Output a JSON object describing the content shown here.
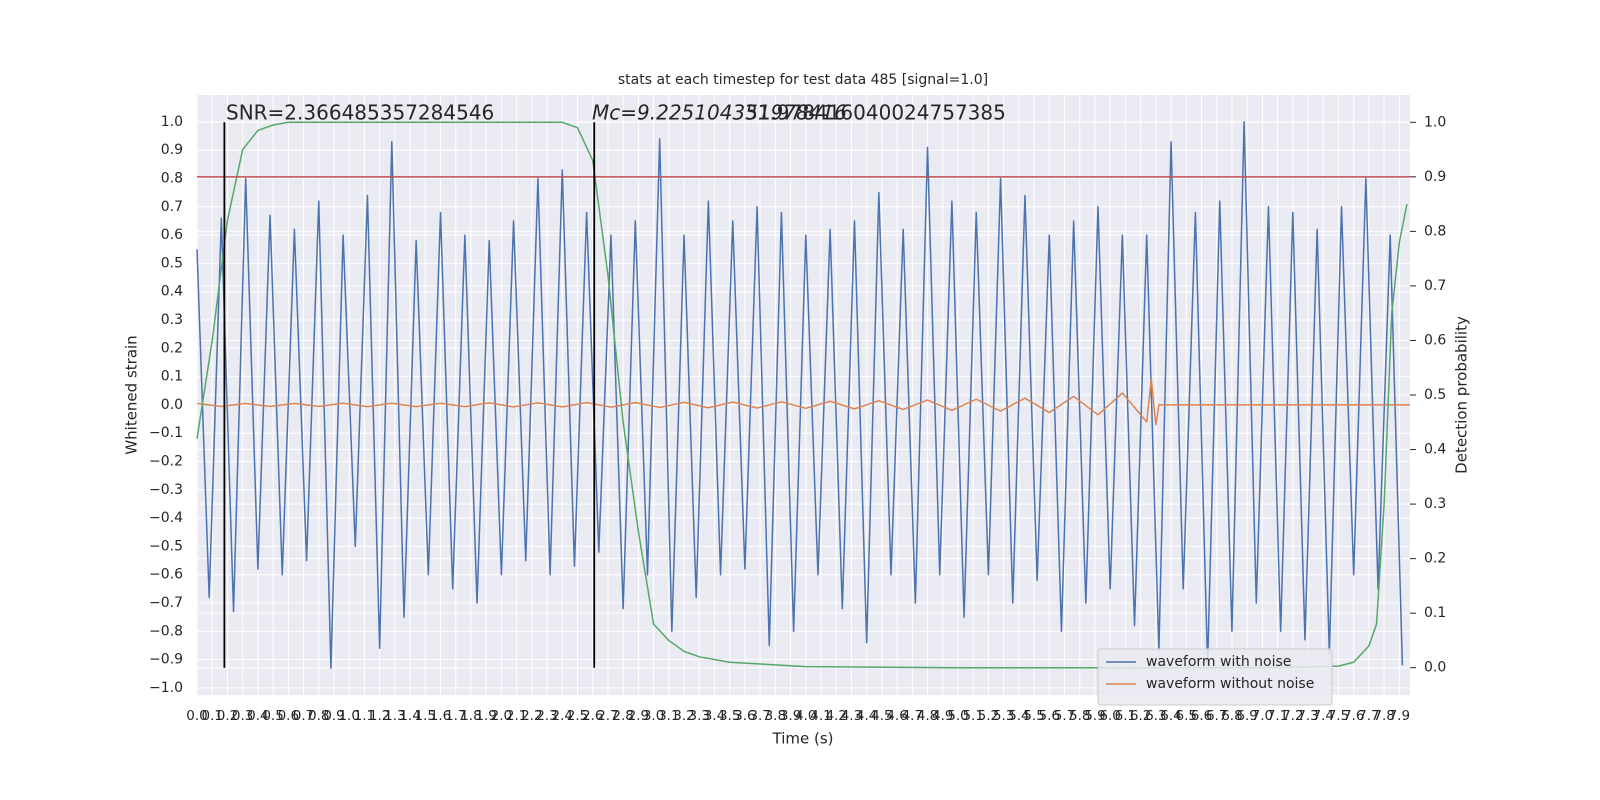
{
  "chart_data": {
    "type": "line",
    "title": "stats at each timestep for test data 485 [signal=1.0]",
    "x_label": "Time (s)",
    "y_label": "Whitened strain",
    "y2_label": "Detection probability",
    "annotations": [
      "SNR=2.366485357284546",
      "Mc=9.225104351978416",
      "31.978416040024757385"
    ],
    "grid": true,
    "legend": "lower right",
    "xlim": [
      0,
      7.97
    ],
    "ylim": [
      -1.025,
      1.095
    ],
    "y2lim": [
      -0.05,
      1.05
    ],
    "xticks": [
      {
        "value": 0,
        "label": "0.0"
      },
      0.1,
      0.2,
      0.3,
      0.4,
      0.5,
      0.6,
      0.7,
      0.8,
      0.9,
      {
        "value": 1,
        "label": "1.0"
      },
      1.1,
      1.2,
      1.3,
      1.4,
      1.5,
      1.6,
      1.7,
      1.8,
      1.9,
      {
        "value": 2,
        "label": "2.0"
      },
      2.1,
      2.2,
      2.3,
      2.4,
      2.5,
      2.6,
      2.7,
      2.8,
      2.9,
      {
        "value": 3,
        "label": "3.0"
      },
      3.1,
      3.2,
      3.3,
      3.4,
      3.5,
      3.6,
      3.7,
      3.8,
      3.9,
      {
        "value": 4,
        "label": "4.0"
      },
      4.1,
      4.2,
      4.3,
      4.4,
      4.5,
      4.6,
      4.7,
      4.8,
      4.9,
      {
        "value": 5,
        "label": "5.0"
      },
      5.1,
      5.2,
      5.3,
      5.4,
      5.5,
      5.6,
      5.7,
      5.8,
      5.9,
      {
        "value": 6,
        "label": "6.0"
      },
      6.1,
      6.2,
      6.3,
      6.4,
      6.5,
      6.6,
      6.7,
      6.8,
      6.9,
      {
        "value": 7,
        "label": "7.0"
      },
      7.1,
      7.2,
      7.3,
      7.4,
      7.5,
      7.6,
      7.7,
      7.8,
      7.9
    ],
    "yticks": [
      {
        "value": -1,
        "label": "−1.0"
      },
      {
        "value": -0.9,
        "label": "−0.9"
      },
      {
        "value": -0.8,
        "label": "−0.8"
      },
      {
        "value": -0.7,
        "label": "−0.7"
      },
      {
        "value": -0.6,
        "label": "−0.6"
      },
      {
        "value": -0.5,
        "label": "−0.5"
      },
      {
        "value": -0.4,
        "label": "−0.4"
      },
      {
        "value": -0.3,
        "label": "−0.3"
      },
      {
        "value": -0.2,
        "label": "−0.2"
      },
      {
        "value": -0.1,
        "label": "−0.1"
      },
      {
        "value": 0,
        "label": "0.0"
      },
      0.1,
      0.2,
      0.3,
      0.4,
      0.5,
      0.6,
      0.7,
      0.8,
      0.9,
      {
        "value": 1,
        "label": "1.0"
      }
    ],
    "y2ticks": [
      {
        "value": 0,
        "label": "0.0"
      },
      0.1,
      0.2,
      0.3,
      0.4,
      0.5,
      0.6,
      0.7,
      0.8,
      0.9,
      {
        "value": 1,
        "label": "1.0"
      }
    ],
    "series": [
      {
        "name": "waveform with noise",
        "color": "#4c72b0",
        "x": [
          0,
          0.08,
          0.16,
          0.24,
          0.32,
          0.4,
          0.48,
          0.56,
          0.64,
          0.72,
          0.8,
          0.88,
          0.96,
          1.04,
          1.12,
          1.2,
          1.28,
          1.36,
          1.44,
          1.52,
          1.6,
          1.68,
          1.76,
          1.84,
          1.92,
          2,
          2.08,
          2.16,
          2.24,
          2.32,
          2.4,
          2.48,
          2.56,
          2.64,
          2.72,
          2.8,
          2.88,
          2.96,
          3.04,
          3.12,
          3.2,
          3.28,
          3.36,
          3.44,
          3.52,
          3.6,
          3.68,
          3.76,
          3.84,
          3.92,
          4,
          4.08,
          4.16,
          4.24,
          4.32,
          4.4,
          4.48,
          4.56,
          4.64,
          4.72,
          4.8,
          4.88,
          4.96,
          5.04,
          5.12,
          5.2,
          5.28,
          5.36,
          5.44,
          5.52,
          5.6,
          5.68,
          5.76,
          5.84,
          5.92,
          6,
          6.08,
          6.16,
          6.24,
          6.32,
          6.4,
          6.48,
          6.56,
          6.64,
          6.72,
          6.8,
          6.88,
          6.96,
          7.04,
          7.12,
          7.2,
          7.28,
          7.36,
          7.44,
          7.52,
          7.6,
          7.68,
          7.76,
          7.84,
          7.92
        ],
        "values": [
          0.55,
          -0.68,
          0.66,
          -0.73,
          0.8,
          -0.58,
          0.67,
          -0.6,
          0.62,
          -0.55,
          0.72,
          -0.93,
          0.6,
          -0.5,
          0.74,
          -0.86,
          0.93,
          -0.75,
          0.58,
          -0.6,
          0.68,
          -0.65,
          0.6,
          -0.7,
          0.58,
          -0.6,
          0.65,
          -0.55,
          0.8,
          -0.6,
          0.83,
          -0.57,
          0.68,
          -0.52,
          0.6,
          -0.72,
          0.65,
          -0.6,
          0.94,
          -0.8,
          0.6,
          -0.68,
          0.72,
          -0.6,
          0.65,
          -0.58,
          0.7,
          -0.85,
          0.68,
          -0.8,
          0.6,
          -0.6,
          0.62,
          -0.72,
          0.65,
          -0.84,
          0.75,
          -0.6,
          0.62,
          -0.7,
          0.91,
          -0.6,
          0.72,
          -0.75,
          0.68,
          -0.6,
          0.8,
          -0.7,
          0.74,
          -0.62,
          0.6,
          -0.8,
          0.65,
          -0.7,
          0.7,
          -0.65,
          0.6,
          -0.78,
          0.6,
          -0.87,
          0.93,
          -0.65,
          0.68,
          -0.92,
          0.72,
          -0.8,
          1.0,
          -0.7,
          0.7,
          -0.8,
          0.68,
          -0.83,
          0.62,
          -0.88,
          0.7,
          -0.6,
          0.8,
          -0.65,
          0.6,
          -0.92
        ]
      },
      {
        "name": "waveform without noise",
        "color": "#dd8452",
        "x": [
          0,
          0.16,
          0.32,
          0.48,
          0.64,
          0.8,
          0.96,
          1.12,
          1.28,
          1.44,
          1.6,
          1.76,
          1.92,
          2.08,
          2.24,
          2.4,
          2.56,
          2.72,
          2.88,
          3.04,
          3.2,
          3.36,
          3.52,
          3.68,
          3.84,
          4,
          4.16,
          4.32,
          4.48,
          4.64,
          4.8,
          4.96,
          5.12,
          5.28,
          5.44,
          5.6,
          5.76,
          5.92,
          6.08,
          6.24,
          6.27,
          6.3,
          6.32,
          7.97
        ],
        "values": [
          0.005,
          -0.005,
          0.005,
          -0.005,
          0.005,
          -0.005,
          0.006,
          -0.006,
          0.006,
          -0.006,
          0.006,
          -0.006,
          0.007,
          -0.007,
          0.007,
          -0.007,
          0.008,
          -0.008,
          0.008,
          -0.009,
          0.009,
          -0.01,
          0.01,
          -0.011,
          0.011,
          -0.012,
          0.013,
          -0.014,
          0.015,
          -0.016,
          0.017,
          -0.019,
          0.02,
          -0.022,
          0.024,
          -0.027,
          0.03,
          -0.035,
          0.042,
          -0.06,
          0.09,
          -0.07,
          0,
          0
        ]
      },
      {
        "color": "#55a868",
        "axis": "y2",
        "x": [
          0,
          0.1,
          0.2,
          0.3,
          0.4,
          0.5,
          0.6,
          1,
          2,
          2.4,
          2.5,
          2.6,
          2.7,
          2.8,
          2.9,
          3,
          3.1,
          3.2,
          3.3,
          3.5,
          4,
          5,
          6,
          7,
          7.5,
          7.6,
          7.7,
          7.75,
          7.8,
          7.85,
          7.9,
          7.95
        ],
        "values": [
          0.42,
          0.6,
          0.82,
          0.95,
          0.985,
          0.995,
          1,
          1,
          1,
          1,
          0.99,
          0.93,
          0.72,
          0.45,
          0.25,
          0.08,
          0.05,
          0.03,
          0.02,
          0.01,
          0.002,
          0,
          0,
          0,
          0.003,
          0.01,
          0.04,
          0.08,
          0.3,
          0.65,
          0.78,
          0.85
        ]
      }
    ],
    "hline": {
      "y": 0.9,
      "axis": "y2",
      "color": "#c44e52"
    },
    "vlines": {
      "x": [
        0.18,
        2.61
      ],
      "ymin": 0,
      "ymax": 1,
      "axis": "y2",
      "color": "#000000"
    }
  }
}
